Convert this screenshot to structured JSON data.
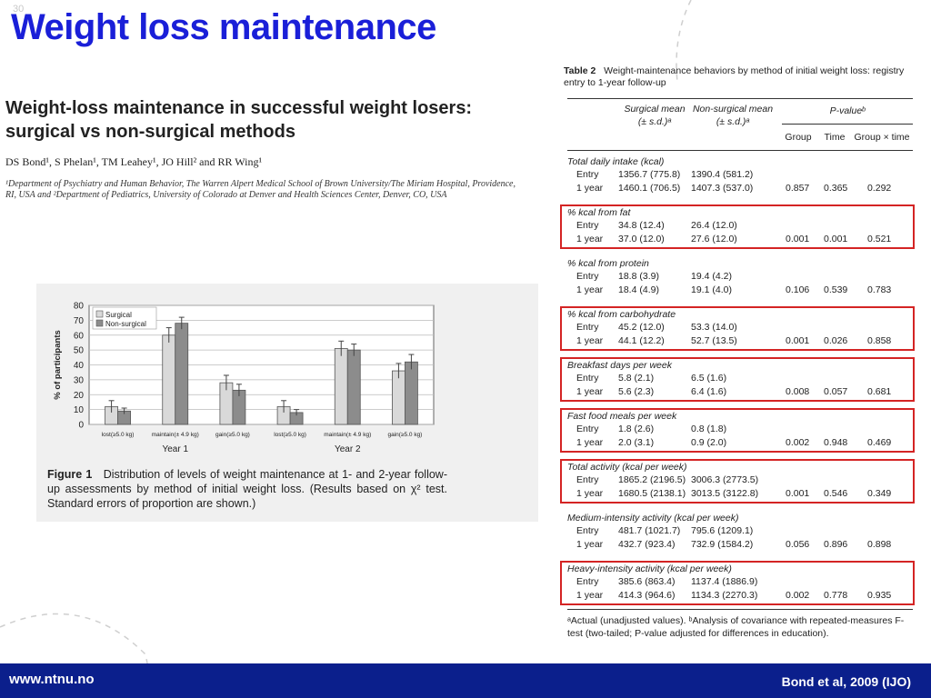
{
  "slide_number": "30",
  "slide_title": "Weight loss maintenance",
  "paper": {
    "title_line1": "Weight-loss maintenance in successful weight losers:",
    "title_line2": "surgical vs non-surgical methods",
    "authors": "DS Bond¹, S Phelan¹, TM Leahey¹, JO Hill² and RR Wing¹",
    "affiliation": "¹Department of Psychiatry and Human Behavior, The Warren Alpert Medical School of Brown University/The Miriam Hospital, Providence, RI, USA and ²Department of Pediatrics, University of Colorado at Denver and Health Sciences Center, Denver, CO, USA"
  },
  "figure": {
    "caption_label": "Figure 1",
    "caption_text": "Distribution of levels of weight maintenance at 1- and 2-year follow-up assessments by method of initial weight loss. (Results based on χ² test. Standard errors of proportion are shown.)"
  },
  "chart_data": {
    "type": "bar",
    "ylabel": "% of participants",
    "ylim": [
      0,
      80
    ],
    "yticks": [
      0,
      10,
      20,
      30,
      40,
      50,
      60,
      70,
      80
    ],
    "categories": [
      "lost(≥5.0 kg)",
      "maintain(± 4.9 kg)",
      "gain(≥5.0 kg)",
      "lost(≥5.0 kg)",
      "maintain(± 4.9 kg)",
      "gain(≥5.0 kg)"
    ],
    "groups": [
      "Year 1",
      "Year 2"
    ],
    "series": [
      {
        "name": "Surgical",
        "color": "#d9d9d9",
        "values": [
          12,
          60,
          28,
          12,
          51,
          36
        ],
        "errors": [
          4,
          5,
          5,
          4,
          5,
          5
        ]
      },
      {
        "name": "Non-surgical",
        "color": "#8c8c8c",
        "values": [
          9,
          68,
          23,
          8,
          50,
          42
        ],
        "errors": [
          2,
          4,
          4,
          2,
          4,
          5
        ]
      }
    ],
    "grid": true,
    "legend": "top-left"
  },
  "table": {
    "label": "Table 2",
    "caption": "Weight-maintenance behaviors by method of initial weight loss: registry entry to 1-year follow-up",
    "headers": {
      "surgical": "Surgical mean",
      "nonsurgical": "Non-surgical mean",
      "sd": "(± s.d.)ᵃ",
      "pvalue": "P-valueᵇ",
      "group": "Group",
      "time": "Time",
      "gxt": "Group × time"
    },
    "sections": [
      {
        "title": "Total daily intake (kcal)",
        "boxed": false,
        "rows": [
          {
            "label": "Entry",
            "s": "1356.7 (775.8)",
            "n": "1390.4 (581.2)",
            "g": "",
            "t": "",
            "gt": ""
          },
          {
            "label": "1 year",
            "s": "1460.1 (706.5)",
            "n": "1407.3 (537.0)",
            "g": "0.857",
            "t": "0.365",
            "gt": "0.292"
          }
        ]
      },
      {
        "title": "% kcal from fat",
        "boxed": true,
        "rows": [
          {
            "label": "Entry",
            "s": "34.8 (12.4)",
            "n": "26.4 (12.0)",
            "g": "",
            "t": "",
            "gt": ""
          },
          {
            "label": "1 year",
            "s": "37.0 (12.0)",
            "n": "27.6 (12.0)",
            "g": "0.001",
            "t": "0.001",
            "gt": "0.521"
          }
        ]
      },
      {
        "title": "% kcal from protein",
        "boxed": false,
        "rows": [
          {
            "label": "Entry",
            "s": "18.8 (3.9)",
            "n": "19.4 (4.2)",
            "g": "",
            "t": "",
            "gt": ""
          },
          {
            "label": "1 year",
            "s": "18.4 (4.9)",
            "n": "19.1 (4.0)",
            "g": "0.106",
            "t": "0.539",
            "gt": "0.783"
          }
        ]
      },
      {
        "title": "% kcal from carbohydrate",
        "boxed": true,
        "rows": [
          {
            "label": "Entry",
            "s": "45.2 (12.0)",
            "n": "53.3 (14.0)",
            "g": "",
            "t": "",
            "gt": ""
          },
          {
            "label": "1 year",
            "s": "44.1 (12.2)",
            "n": "52.7 (13.5)",
            "g": "0.001",
            "t": "0.026",
            "gt": "0.858"
          }
        ]
      },
      {
        "title": "Breakfast days per week",
        "boxed": true,
        "rows": [
          {
            "label": "Entry",
            "s": "5.8 (2.1)",
            "n": "6.5 (1.6)",
            "g": "",
            "t": "",
            "gt": ""
          },
          {
            "label": "1 year",
            "s": "5.6 (2.3)",
            "n": "6.4 (1.6)",
            "g": "0.008",
            "t": "0.057",
            "gt": "0.681"
          }
        ]
      },
      {
        "title": "Fast food meals per week",
        "boxed": true,
        "rows": [
          {
            "label": "Entry",
            "s": "1.8 (2.6)",
            "n": "0.8 (1.8)",
            "g": "",
            "t": "",
            "gt": ""
          },
          {
            "label": "1 year",
            "s": "2.0 (3.1)",
            "n": "0.9 (2.0)",
            "g": "0.002",
            "t": "0.948",
            "gt": "0.469"
          }
        ]
      },
      {
        "title": "Total activity (kcal per week)",
        "boxed": true,
        "rows": [
          {
            "label": "Entry",
            "s": "1865.2 (2196.5)",
            "n": "3006.3 (2773.5)",
            "g": "",
            "t": "",
            "gt": ""
          },
          {
            "label": "1 year",
            "s": "1680.5 (2138.1)",
            "n": "3013.5 (3122.8)",
            "g": "0.001",
            "t": "0.546",
            "gt": "0.349"
          }
        ]
      },
      {
        "title": "Medium-intensity activity (kcal per week)",
        "boxed": false,
        "rows": [
          {
            "label": "Entry",
            "s": "481.7 (1021.7)",
            "n": "795.6 (1209.1)",
            "g": "",
            "t": "",
            "gt": ""
          },
          {
            "label": "1 year",
            "s": "432.7 (923.4)",
            "n": "732.9 (1584.2)",
            "g": "0.056",
            "t": "0.896",
            "gt": "0.898"
          }
        ]
      },
      {
        "title": "Heavy-intensity activity (kcal per week)",
        "boxed": true,
        "rows": [
          {
            "label": "Entry",
            "s": "385.6 (863.4)",
            "n": "1137.4 (1886.9)",
            "g": "",
            "t": "",
            "gt": ""
          },
          {
            "label": "1 year",
            "s": "414.3 (964.6)",
            "n": "1134.3 (2270.3)",
            "g": "0.002",
            "t": "0.778",
            "gt": "0.935"
          }
        ]
      }
    ],
    "footnote": "ᵃActual (unadjusted values). ᵇAnalysis of covariance with repeated-measures F-test (two-tailed; P-value adjusted for differences in education)."
  },
  "footer": {
    "url": "www.ntnu.no",
    "citation": "Bond et al, 2009 (IJO)",
    "bar_color": "#0b1f8c"
  },
  "accent": {
    "title_color": "#1a1fd8",
    "highlight_color": "#d42424"
  }
}
